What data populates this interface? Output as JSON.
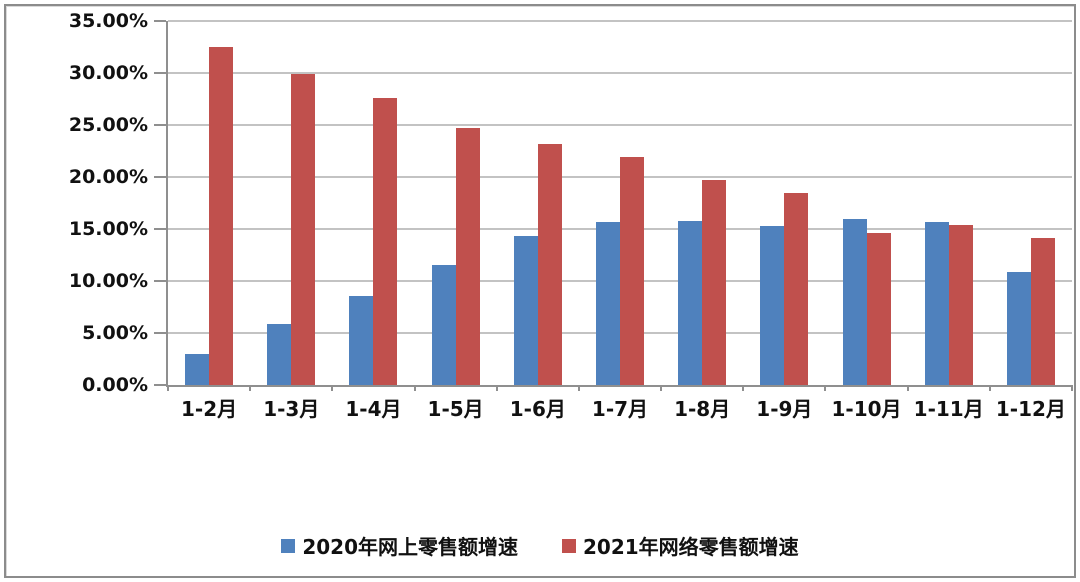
{
  "chart_data": {
    "type": "bar",
    "title": "",
    "xlabel": "",
    "ylabel": "",
    "categories": [
      "1-2月",
      "1-3月",
      "1-4月",
      "1-5月",
      "1-6月",
      "1-7月",
      "1-8月",
      "1-9月",
      "1-10月",
      "1-11月",
      "1-12月"
    ],
    "series": [
      {
        "name": "2020年网上零售额增速",
        "color": "#4F81BD",
        "values": [
          3.0,
          5.9,
          8.6,
          11.5,
          14.3,
          15.7,
          15.8,
          15.3,
          16.0,
          15.7,
          10.9
        ]
      },
      {
        "name": "2021年网络零售额增速",
        "color": "#C0504D",
        "values": [
          32.5,
          29.9,
          27.6,
          24.7,
          23.2,
          21.9,
          19.7,
          18.5,
          14.6,
          15.4,
          14.1
        ]
      }
    ],
    "ylim": [
      0,
      35
    ],
    "ytick_step": 5,
    "ytick_labels": [
      "0.00%",
      "5.00%",
      "10.00%",
      "15.00%",
      "20.00%",
      "25.00%",
      "30.00%",
      "35.00%"
    ],
    "grid": true,
    "legend_position": "bottom"
  },
  "colors": {
    "series_2020": "#4F81BD",
    "series_2021": "#C0504D",
    "gridline": "#c3c3c3",
    "axis": "#8f8f8f",
    "frame_border": "#8c8c8c",
    "text": "#111111"
  }
}
